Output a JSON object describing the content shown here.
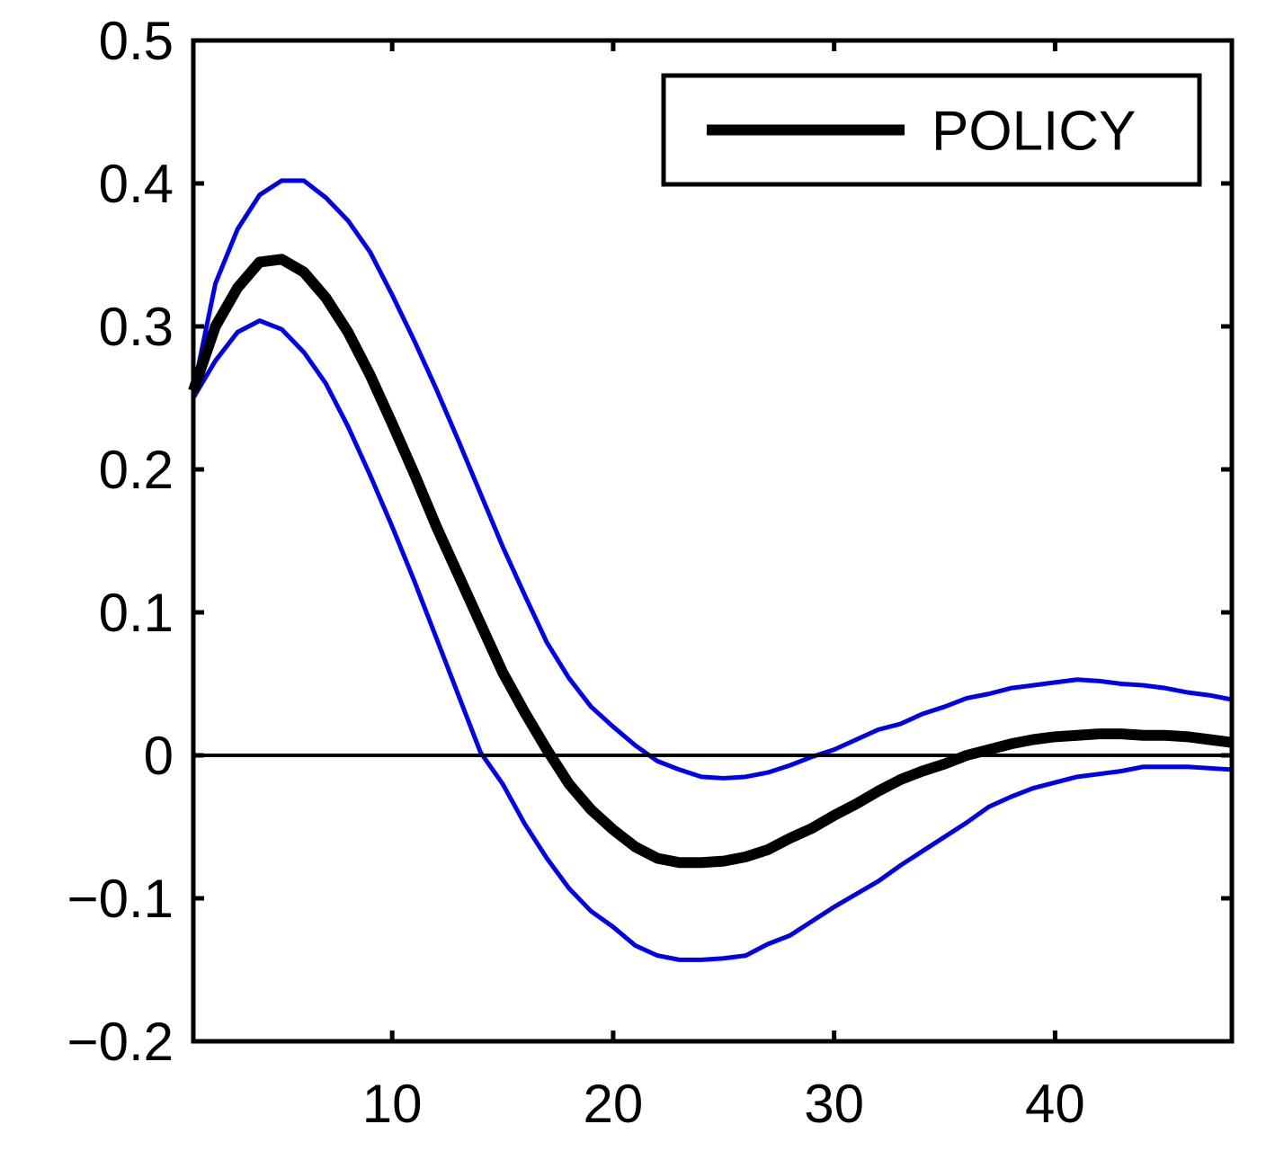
{
  "chart_data": {
    "type": "line",
    "x": [
      1,
      2,
      3,
      4,
      5,
      6,
      7,
      8,
      9,
      10,
      11,
      12,
      13,
      14,
      15,
      16,
      17,
      18,
      19,
      20,
      21,
      22,
      23,
      24,
      25,
      26,
      27,
      28,
      29,
      30,
      31,
      32,
      33,
      34,
      35,
      36,
      37,
      38,
      39,
      40,
      41,
      42,
      43,
      44,
      45,
      46,
      47,
      48
    ],
    "series": [
      {
        "name": "POLICY",
        "color": "#000000",
        "role": "estimate",
        "values": [
          0.255,
          0.3,
          0.327,
          0.345,
          0.347,
          0.338,
          0.32,
          0.296,
          0.266,
          0.232,
          0.197,
          0.16,
          0.126,
          0.092,
          0.058,
          0.03,
          0.004,
          -0.02,
          -0.038,
          -0.052,
          -0.064,
          -0.072,
          -0.075,
          -0.075,
          -0.074,
          -0.071,
          -0.066,
          -0.058,
          -0.051,
          -0.042,
          -0.034,
          -0.025,
          -0.017,
          -0.011,
          -0.006,
          0.0,
          0.004,
          0.008,
          0.011,
          0.013,
          0.014,
          0.015,
          0.015,
          0.014,
          0.014,
          0.013,
          0.011,
          0.009
        ]
      },
      {
        "name": "",
        "color": "#0000ee",
        "role": "upper-band",
        "values": [
          0.255,
          0.33,
          0.368,
          0.392,
          0.402,
          0.402,
          0.39,
          0.374,
          0.352,
          0.322,
          0.29,
          0.256,
          0.22,
          0.183,
          0.146,
          0.112,
          0.079,
          0.054,
          0.034,
          0.02,
          0.007,
          -0.004,
          -0.01,
          -0.015,
          -0.016,
          -0.015,
          -0.012,
          -0.007,
          -0.001,
          0.004,
          0.011,
          0.018,
          0.022,
          0.029,
          0.034,
          0.04,
          0.043,
          0.047,
          0.049,
          0.051,
          0.053,
          0.052,
          0.05,
          0.049,
          0.047,
          0.044,
          0.042,
          0.039
        ]
      },
      {
        "name": "",
        "color": "#0000ee",
        "role": "lower-band",
        "values": [
          0.25,
          0.276,
          0.296,
          0.304,
          0.298,
          0.282,
          0.26,
          0.23,
          0.196,
          0.16,
          0.122,
          0.082,
          0.042,
          0.002,
          -0.02,
          -0.048,
          -0.072,
          -0.093,
          -0.109,
          -0.12,
          -0.133,
          -0.14,
          -0.143,
          -0.143,
          -0.142,
          -0.14,
          -0.132,
          -0.126,
          -0.116,
          -0.106,
          -0.097,
          -0.088,
          -0.077,
          -0.067,
          -0.057,
          -0.047,
          -0.036,
          -0.029,
          -0.023,
          -0.019,
          -0.015,
          -0.013,
          -0.011,
          -0.008,
          -0.008,
          -0.008,
          -0.009,
          -0.01
        ]
      }
    ],
    "zero_line": 0,
    "xlim": [
      1,
      48
    ],
    "ylim": [
      -0.2,
      0.5
    ],
    "xticks": [
      10,
      20,
      30,
      40
    ],
    "xtick_labels": [
      "10",
      "20",
      "30",
      "40"
    ],
    "yticks": [
      -0.2,
      -0.1,
      0,
      0.1,
      0.2,
      0.3,
      0.4,
      0.5
    ],
    "ytick_labels": [
      "−0.2",
      "−0.1",
      "0",
      "0.1",
      "0.2",
      "0.3",
      "0.4",
      "0.5"
    ],
    "legend": {
      "placement": "top-right",
      "entries": [
        "POLICY"
      ]
    },
    "grid": false
  }
}
